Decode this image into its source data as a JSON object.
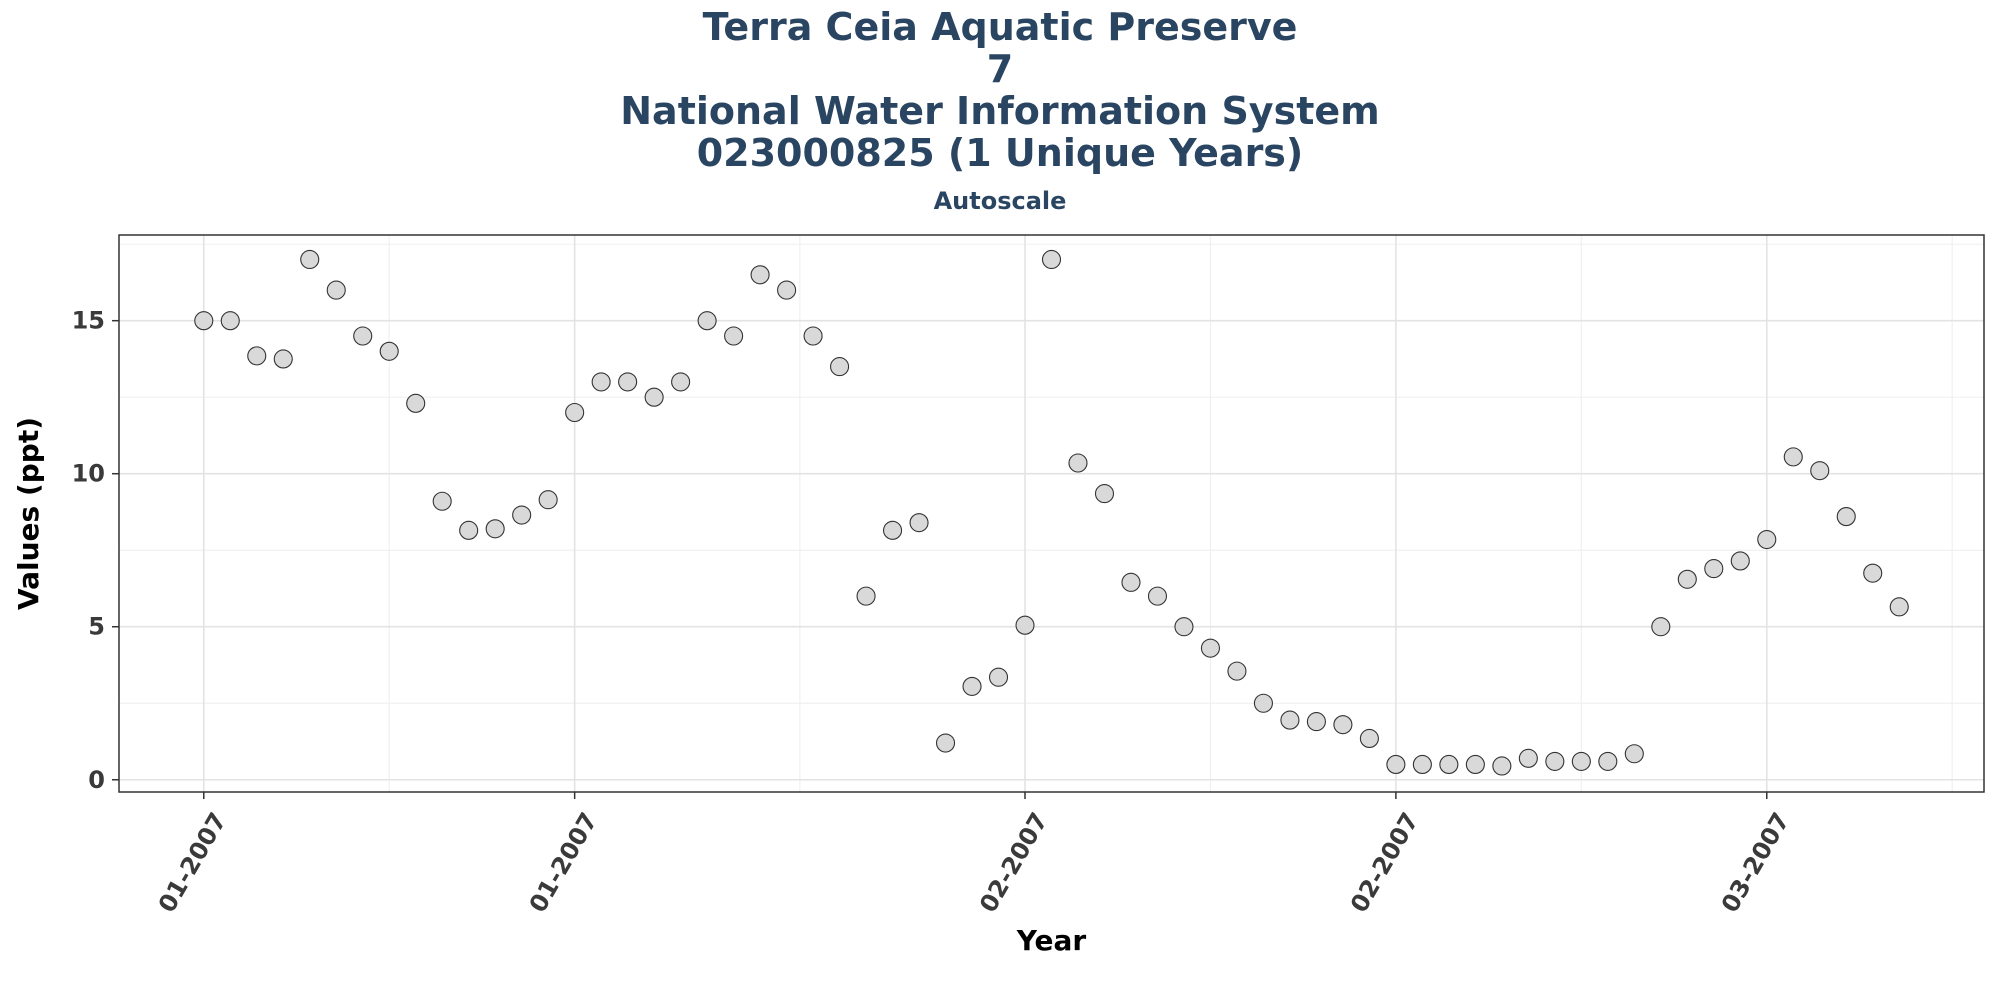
{
  "chart_data": {
    "type": "scatter",
    "title_lines": [
      "Terra Ceia Aquatic Preserve",
      "7",
      "National Water Information System",
      "023000825 (1 Unique Years)"
    ],
    "subtitle": "Autoscale",
    "xlabel": "Year",
    "ylabel": "Values (ppt)",
    "x_tick_labels": [
      "01-2007",
      "01-2007",
      "02-2007",
      "02-2007",
      "03-2007"
    ],
    "y_ticks": [
      0,
      5,
      10,
      15
    ],
    "ylim": [
      -0.4,
      17.8
    ],
    "xlim": [
      -3.2,
      67.2
    ],
    "grid": true,
    "point_fill": "#d9d9d9",
    "point_stroke": "#333333",
    "x": [
      0,
      1,
      2,
      3,
      4,
      5,
      6,
      7,
      8,
      9,
      10,
      11,
      12,
      13,
      14,
      15,
      16,
      17,
      18,
      19,
      20,
      21,
      22,
      23,
      24,
      25,
      26,
      27,
      28,
      29,
      30,
      31,
      32,
      33,
      34,
      35,
      36,
      37,
      38,
      39,
      40,
      41,
      42,
      43,
      44,
      45,
      46,
      47,
      48,
      49,
      50,
      51,
      52,
      53,
      54,
      55,
      56,
      57,
      58,
      59,
      60,
      61,
      62,
      63,
      64
    ],
    "values": [
      15.0,
      15.0,
      13.85,
      13.75,
      17.0,
      16.0,
      14.5,
      14.0,
      12.3,
      9.1,
      8.15,
      8.2,
      8.65,
      9.15,
      12.0,
      13.0,
      13.0,
      12.5,
      13.0,
      15.0,
      14.5,
      16.5,
      16.0,
      14.5,
      13.5,
      6.0,
      8.15,
      8.4,
      1.2,
      3.05,
      3.35,
      5.05,
      17.0,
      10.35,
      9.35,
      6.45,
      6.0,
      5.0,
      4.3,
      3.55,
      2.5,
      1.95,
      1.9,
      1.8,
      1.35,
      0.5,
      0.5,
      0.5,
      0.5,
      0.45,
      0.7,
      0.6,
      0.6,
      0.6,
      0.85,
      5.0,
      6.55,
      6.9,
      7.15,
      7.85,
      10.55,
      10.1,
      8.6,
      6.75,
      5.65
    ]
  }
}
